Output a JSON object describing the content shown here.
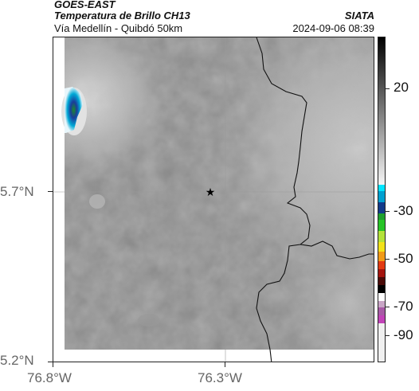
{
  "header": {
    "source": "GOES-EAST",
    "product": "Temperatura de Brillo CH13",
    "region": "Vía Medellín - Quibdó 50km",
    "brand": "SIATA",
    "timestamp": "2024-09-06 08:39"
  },
  "map": {
    "lat_labels": [
      "5.7°N",
      "5.2°N"
    ],
    "lon_labels": [
      "76.8°W",
      "76.3°W"
    ],
    "marker": {
      "label": "star",
      "symbol": "★"
    },
    "basemap": "gray brightness temperature field with department borders",
    "colors": {
      "field": "#7e7e7e",
      "border": "#111111",
      "cold_cloud": "#00a9d6",
      "deep_cloud": "#1b3d9a"
    }
  },
  "colorbar": {
    "labels": [
      "20",
      "-30",
      "-50",
      "-70",
      "-90"
    ]
  }
}
